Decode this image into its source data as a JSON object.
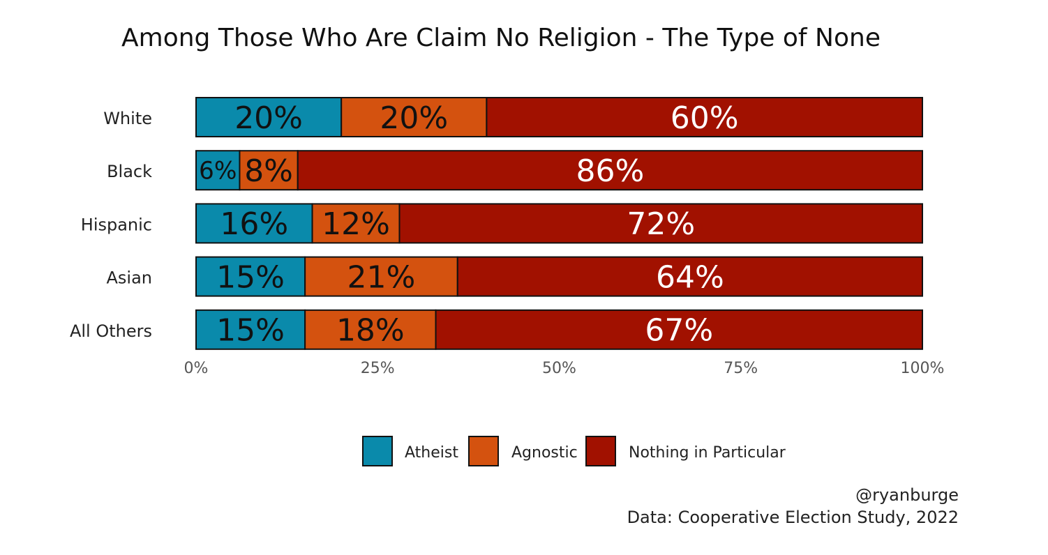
{
  "chart_data": {
    "type": "bar",
    "orientation": "horizontal",
    "stacked": true,
    "title": "Among Those Who Are Claim No Religion - The Type of None",
    "xlabel": "",
    "ylabel": "",
    "xlim": [
      0,
      100
    ],
    "x_ticks": [
      "0%",
      "25%",
      "50%",
      "75%",
      "100%"
    ],
    "x_tick_values": [
      0,
      25,
      50,
      75,
      100
    ],
    "categories": [
      "White",
      "Black",
      "Hispanic",
      "Asian",
      "All Others"
    ],
    "series": [
      {
        "name": "Atheist",
        "color": "#0a8aab",
        "label_color": "#111111",
        "values": [
          20,
          6,
          16,
          15,
          15
        ],
        "labels": [
          "20%",
          "6%",
          "16%",
          "15%",
          "15%"
        ]
      },
      {
        "name": "Agnostic",
        "color": "#d4520f",
        "label_color": "#111111",
        "values": [
          20,
          8,
          12,
          21,
          18
        ],
        "labels": [
          "20%",
          "8%",
          "12%",
          "21%",
          "18%"
        ]
      },
      {
        "name": "Nothing in Particular",
        "color": "#a11100",
        "label_color": "#ffffff",
        "values": [
          60,
          86,
          72,
          64,
          67
        ],
        "labels": [
          "60%",
          "86%",
          "72%",
          "64%",
          "67%"
        ]
      }
    ],
    "grid": false,
    "legend_position": "bottom",
    "caption": [
      "@ryanburge",
      "Data: Cooperative Election Study, 2022"
    ]
  }
}
